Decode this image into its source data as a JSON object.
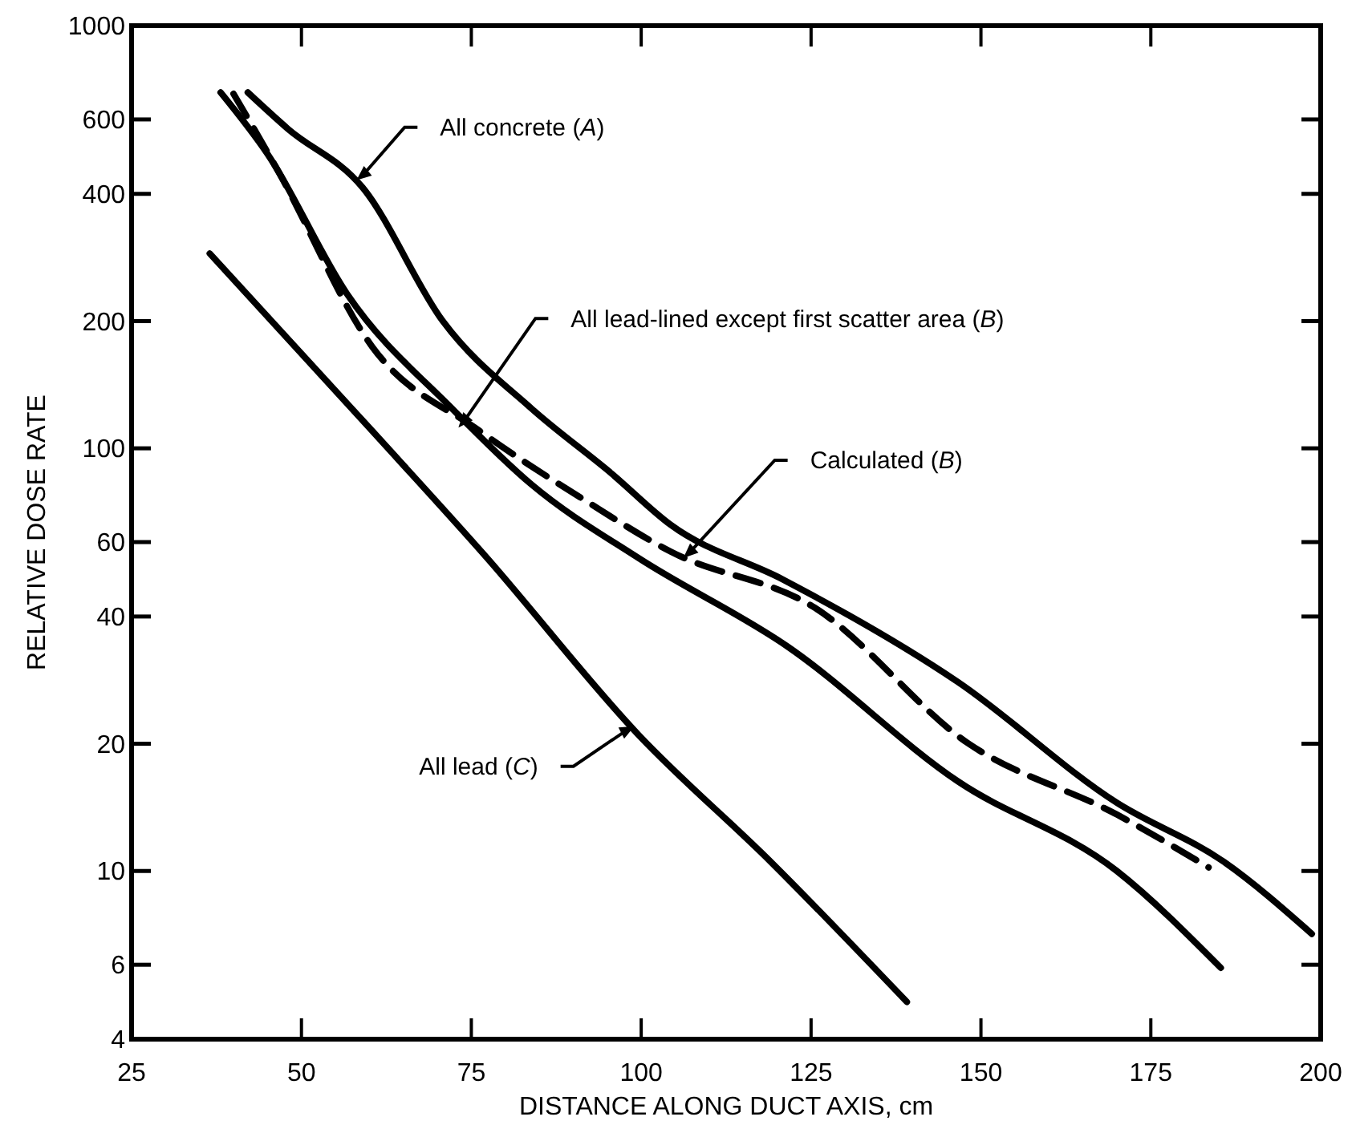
{
  "chart_data": {
    "type": "line",
    "xlabel": "DISTANCE ALONG DUCT AXIS, cm",
    "ylabel": "RELATIVE DOSE RATE",
    "log": "y",
    "grid": false,
    "xlim": [
      25,
      200
    ],
    "xticks": [
      25,
      50,
      75,
      100,
      125,
      150,
      175,
      200
    ],
    "ylim": [
      4,
      1000
    ],
    "yticks": [
      4,
      6,
      10,
      20,
      40,
      60,
      100,
      200,
      400,
      600,
      1000
    ],
    "series": [
      {
        "color": "#000000",
        "line_style": "solid",
        "x": [
          42.1,
          48,
          59,
          70.8,
          83.9,
          95.7,
          104.3,
          120.8,
          146.6,
          170,
          185.8,
          198.7
        ],
        "values": [
          695,
          570,
          414,
          200,
          124,
          87,
          66,
          49,
          28,
          14.5,
          10.5,
          7.1
        ]
      },
      {
        "color": "#000000",
        "line_style": "solid",
        "x": [
          38.1,
          45,
          56.7,
          72.2,
          83.9,
          99.6,
          121.5,
          146.6,
          170,
          185.3
        ],
        "values": [
          695,
          497,
          232,
          124,
          82,
          55,
          34,
          16.3,
          10,
          5.9
        ]
      },
      {
        "color": "#000000",
        "line_style": "dashed",
        "x": [
          40,
          46.4,
          60.4,
          76.2,
          91.9,
          104.3,
          125.5,
          148.2,
          170,
          183.5
        ],
        "values": [
          690,
          458,
          174,
          110,
          75,
          57,
          42,
          20,
          13.6,
          10.2
        ]
      },
      {
        "color": "#000000",
        "line_style": "solid",
        "x": [
          36.5,
          60.4,
          76.9,
          99.6,
          119.1,
          139.1
        ],
        "values": [
          289,
          110,
          56,
          21,
          10.5,
          4.9
        ]
      }
    ],
    "annotations": [
      {
        "text": "All concrete (A)",
        "x": 58.1,
        "y": 431
      },
      {
        "text": "All lead-lined except first scatter area (B)",
        "x": 73.1,
        "y": 112
      },
      {
        "text": "Calculated (B)",
        "x": 106.2,
        "y": 55
      },
      {
        "text": "All lead (C)",
        "x": 99,
        "y": 22
      }
    ]
  }
}
